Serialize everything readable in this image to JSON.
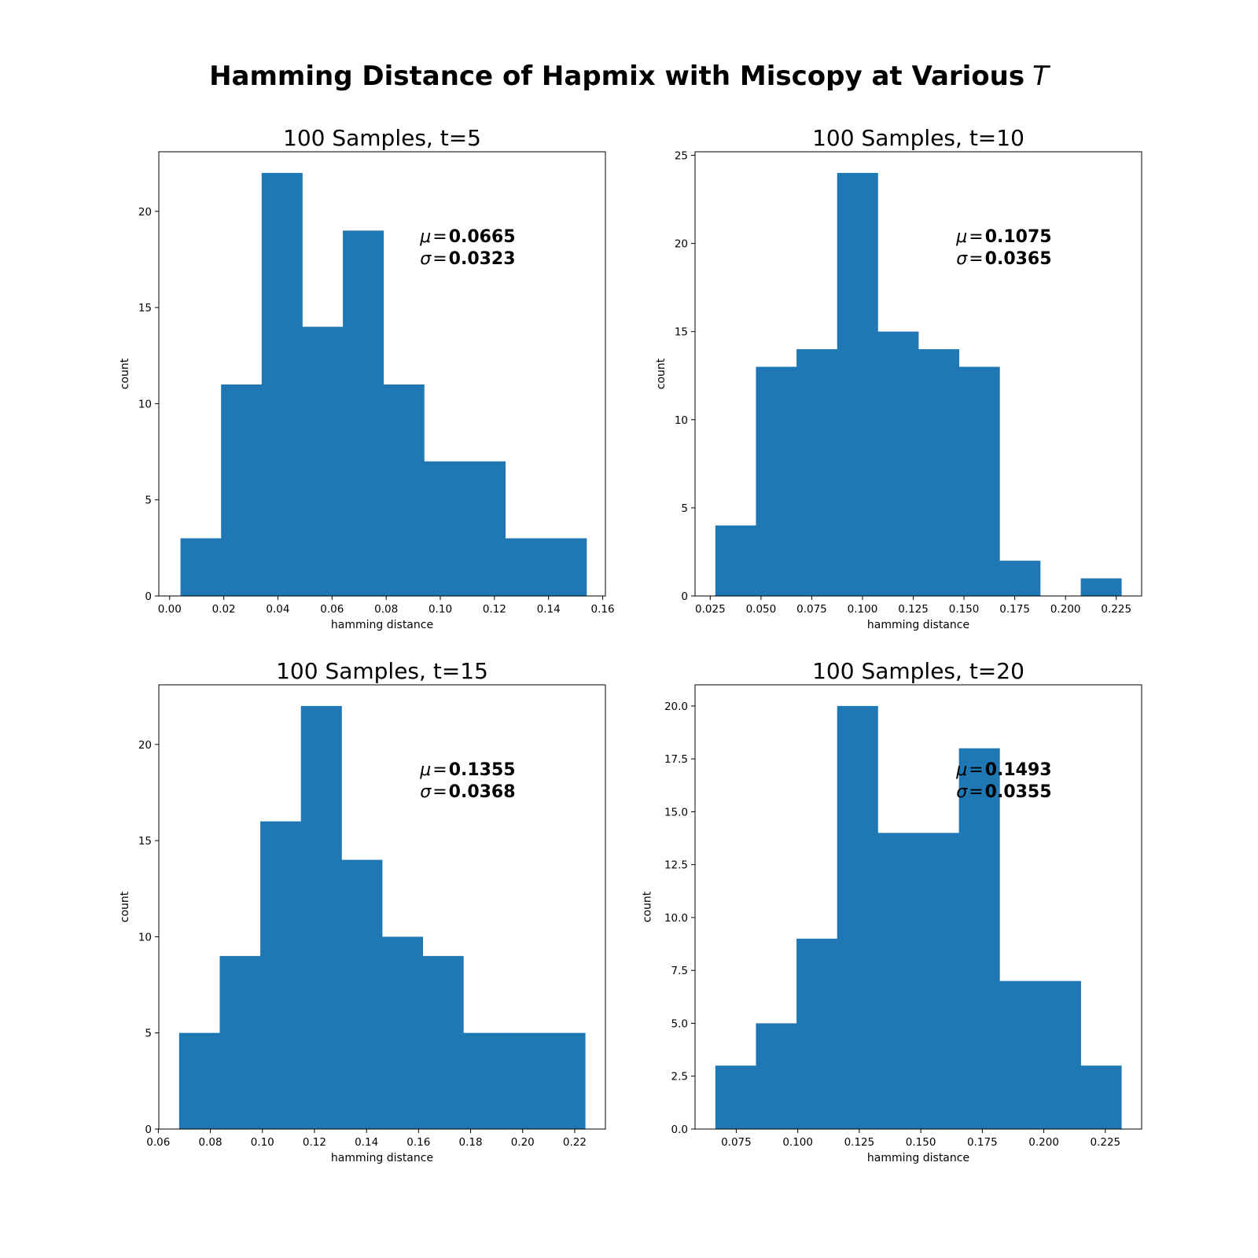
{
  "figure": {
    "title_prefix": "Hamming Distance of Hapmix with Miscopy at Various",
    "title_symbol": "T"
  },
  "chart_data": [
    {
      "type": "bar",
      "title": "100 Samples, t=5",
      "xlabel": "hamming distance",
      "ylabel": "count",
      "bin_edges": [
        0.004,
        0.019,
        0.034,
        0.049,
        0.064,
        0.079,
        0.094,
        0.109,
        0.124,
        0.139,
        0.154
      ],
      "values": [
        3,
        11,
        22,
        14,
        19,
        11,
        7,
        7,
        3,
        3
      ],
      "xlim": [
        -0.004,
        0.161
      ],
      "ylim": [
        0,
        23.1
      ],
      "xticks": [
        0.0,
        0.02,
        0.04,
        0.06,
        0.08,
        0.1,
        0.12,
        0.14,
        0.16
      ],
      "xtick_labels": [
        "0.00",
        "0.02",
        "0.04",
        "0.06",
        "0.08",
        "0.10",
        "0.12",
        "0.14",
        "0.16"
      ],
      "yticks": [
        0,
        5,
        10,
        15,
        20
      ],
      "ytick_labels": [
        "0",
        "5",
        "10",
        "15",
        "20"
      ],
      "stats": {
        "mu_symbol": "μ",
        "sigma_symbol": "σ",
        "eq": "=",
        "mu": "0.0665",
        "sigma": "0.0323"
      },
      "color": "#1f77b4"
    },
    {
      "type": "bar",
      "title": "100 Samples, t=10",
      "xlabel": "hamming distance",
      "ylabel": "count",
      "bin_edges": [
        0.0275,
        0.0475,
        0.0675,
        0.0875,
        0.1075,
        0.1275,
        0.1475,
        0.1675,
        0.1875,
        0.2075,
        0.2275
      ],
      "values": [
        4,
        13,
        14,
        24,
        15,
        14,
        13,
        2,
        0,
        1
      ],
      "xlim": [
        0.0175,
        0.2375
      ],
      "ylim": [
        0,
        25.2
      ],
      "xticks": [
        0.025,
        0.05,
        0.075,
        0.1,
        0.125,
        0.15,
        0.175,
        0.2,
        0.225
      ],
      "xtick_labels": [
        "0.025",
        "0.050",
        "0.075",
        "0.100",
        "0.125",
        "0.150",
        "0.175",
        "0.200",
        "0.225"
      ],
      "yticks": [
        0,
        5,
        10,
        15,
        20,
        25
      ],
      "ytick_labels": [
        "0",
        "5",
        "10",
        "15",
        "20",
        "25"
      ],
      "stats": {
        "mu_symbol": "μ",
        "sigma_symbol": "σ",
        "eq": "=",
        "mu": "0.1075",
        "sigma": "0.0365"
      },
      "color": "#1f77b4"
    },
    {
      "type": "bar",
      "title": "100 Samples, t=15",
      "xlabel": "hamming distance",
      "ylabel": "count",
      "bin_edges": [
        0.068,
        0.0836,
        0.0992,
        0.1148,
        0.1304,
        0.146,
        0.1616,
        0.1772,
        0.1928,
        0.2084,
        0.224
      ],
      "values": [
        5,
        9,
        16,
        22,
        14,
        10,
        9,
        5,
        5,
        5
      ],
      "xlim": [
        0.0602,
        0.2318
      ],
      "ylim": [
        0,
        23.1
      ],
      "xticks": [
        0.06,
        0.08,
        0.1,
        0.12,
        0.14,
        0.16,
        0.18,
        0.2,
        0.22
      ],
      "xtick_labels": [
        "0.06",
        "0.08",
        "0.10",
        "0.12",
        "0.14",
        "0.16",
        "0.18",
        "0.20",
        "0.22"
      ],
      "yticks": [
        0,
        5,
        10,
        15,
        20
      ],
      "ytick_labels": [
        "0",
        "5",
        "10",
        "15",
        "20"
      ],
      "stats": {
        "mu_symbol": "μ",
        "sigma_symbol": "σ",
        "eq": "=",
        "mu": "0.1355",
        "sigma": "0.0368"
      },
      "color": "#1f77b4"
    },
    {
      "type": "bar",
      "title": "100 Samples, t=20",
      "xlabel": "hamming distance",
      "ylabel": "count",
      "bin_edges": [
        0.0665,
        0.083,
        0.0995,
        0.116,
        0.1325,
        0.149,
        0.1655,
        0.182,
        0.1985,
        0.215,
        0.2315
      ],
      "values": [
        3,
        5,
        9,
        20,
        14,
        14,
        18,
        7,
        7,
        3
      ],
      "xlim": [
        0.05825,
        0.23975
      ],
      "ylim": [
        0,
        21.0
      ],
      "xticks": [
        0.075,
        0.1,
        0.125,
        0.15,
        0.175,
        0.2,
        0.225
      ],
      "xtick_labels": [
        "0.075",
        "0.100",
        "0.125",
        "0.150",
        "0.175",
        "0.200",
        "0.225"
      ],
      "yticks": [
        0,
        2.5,
        5,
        7.5,
        10,
        12.5,
        15,
        17.5,
        20
      ],
      "ytick_labels": [
        "0.0",
        "2.5",
        "5.0",
        "7.5",
        "10.0",
        "12.5",
        "15.0",
        "17.5",
        "20.0"
      ],
      "stats": {
        "mu_symbol": "μ",
        "sigma_symbol": "σ",
        "eq": "=",
        "mu": "0.1493",
        "sigma": "0.0355"
      },
      "color": "#1f77b4"
    }
  ]
}
